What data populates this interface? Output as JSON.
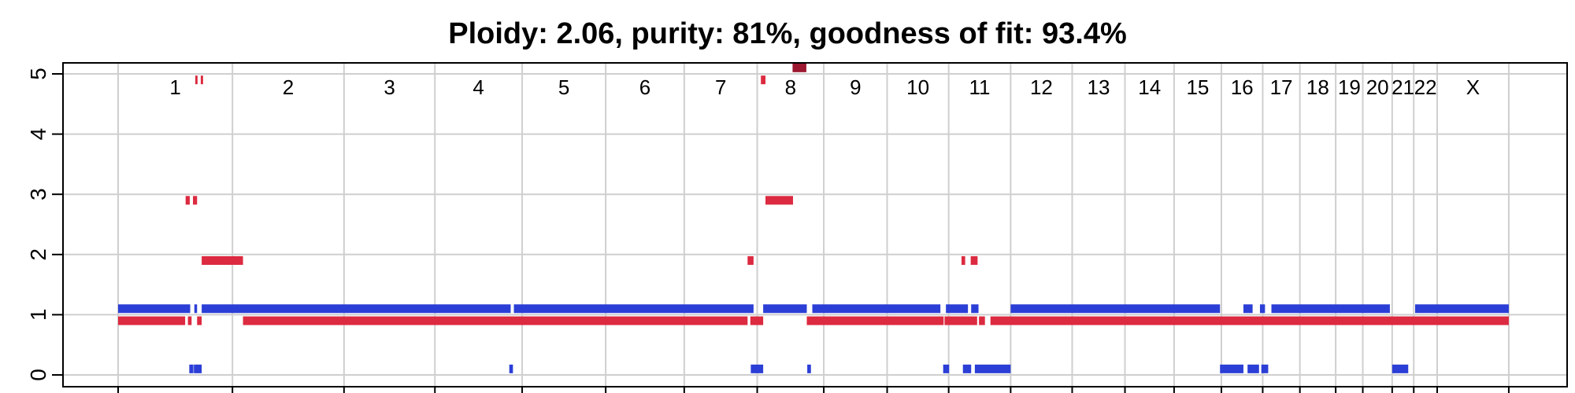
{
  "chart_data": {
    "type": "segment",
    "title": "Ploidy: 2.06, purity: 81%, goodness of fit: 93.4%",
    "ylim": [
      0,
      5
    ],
    "y_ticks": [
      "0",
      "1",
      "2",
      "3",
      "4",
      "5"
    ],
    "x_range_mb": [
      0,
      3036
    ],
    "grid": true,
    "chromosomes": [
      {
        "name": "1",
        "start": 0,
        "end": 249
      },
      {
        "name": "2",
        "start": 249,
        "end": 492
      },
      {
        "name": "3",
        "start": 492,
        "end": 690
      },
      {
        "name": "4",
        "start": 690,
        "end": 880
      },
      {
        "name": "5",
        "start": 880,
        "end": 1062
      },
      {
        "name": "6",
        "start": 1062,
        "end": 1233
      },
      {
        "name": "7",
        "start": 1233,
        "end": 1392
      },
      {
        "name": "8",
        "start": 1392,
        "end": 1537
      },
      {
        "name": "9",
        "start": 1537,
        "end": 1675
      },
      {
        "name": "10",
        "start": 1675,
        "end": 1809
      },
      {
        "name": "11",
        "start": 1809,
        "end": 1944
      },
      {
        "name": "12",
        "start": 1944,
        "end": 2078
      },
      {
        "name": "13",
        "start": 2078,
        "end": 2193
      },
      {
        "name": "14",
        "start": 2193,
        "end": 2300
      },
      {
        "name": "15",
        "start": 2300,
        "end": 2403
      },
      {
        "name": "16",
        "start": 2403,
        "end": 2493
      },
      {
        "name": "17",
        "start": 2493,
        "end": 2574
      },
      {
        "name": "18",
        "start": 2574,
        "end": 2652
      },
      {
        "name": "19",
        "start": 2652,
        "end": 2711
      },
      {
        "name": "20",
        "start": 2711,
        "end": 2775
      },
      {
        "name": "21",
        "start": 2775,
        "end": 2822
      },
      {
        "name": "22",
        "start": 2822,
        "end": 2873
      },
      {
        "name": "X",
        "start": 2873,
        "end": 3029
      }
    ],
    "series": [
      {
        "name": "",
        "color": "#dc2a40",
        "segments": [
          {
            "start": 0,
            "end": 146,
            "value": 0.9
          },
          {
            "start": 152,
            "end": 160,
            "value": 0.9
          },
          {
            "start": 172,
            "end": 182,
            "value": 0.9
          },
          {
            "start": 272,
            "end": 1371,
            "value": 0.9
          },
          {
            "start": 1377,
            "end": 1405,
            "value": 0.9
          },
          {
            "start": 1500,
            "end": 1798,
            "value": 0.9
          },
          {
            "start": 1800,
            "end": 1871,
            "value": 0.9
          },
          {
            "start": 1875,
            "end": 1888,
            "value": 0.9
          },
          {
            "start": 1900,
            "end": 3029,
            "value": 0.9
          },
          {
            "start": 182,
            "end": 272,
            "value": 1.9
          },
          {
            "start": 1371,
            "end": 1384,
            "value": 1.9
          },
          {
            "start": 1837,
            "end": 1845,
            "value": 1.9
          },
          {
            "start": 1857,
            "end": 1872,
            "value": 1.9
          },
          {
            "start": 147,
            "end": 156,
            "value": 2.9
          },
          {
            "start": 163,
            "end": 172,
            "value": 2.9
          },
          {
            "start": 1410,
            "end": 1470,
            "value": 2.9
          },
          {
            "start": 168,
            "end": 173,
            "value": 4.9
          },
          {
            "start": 180,
            "end": 185,
            "value": 4.9
          },
          {
            "start": 1400,
            "end": 1410,
            "value": 4.9
          }
        ]
      },
      {
        "name": "",
        "color": "#2b3ed6",
        "segments": [
          {
            "start": 0,
            "end": 157,
            "value": 1.1
          },
          {
            "start": 166,
            "end": 172,
            "value": 1.1
          },
          {
            "start": 182,
            "end": 855,
            "value": 1.1
          },
          {
            "start": 862,
            "end": 1384,
            "value": 1.1
          },
          {
            "start": 1405,
            "end": 1500,
            "value": 1.1
          },
          {
            "start": 1512,
            "end": 1791,
            "value": 1.1
          },
          {
            "start": 1803,
            "end": 1851,
            "value": 1.1
          },
          {
            "start": 1858,
            "end": 1874,
            "value": 1.1
          },
          {
            "start": 1944,
            "end": 2400,
            "value": 1.1
          },
          {
            "start": 2451,
            "end": 2471,
            "value": 1.1
          },
          {
            "start": 2487,
            "end": 2498,
            "value": 1.1
          },
          {
            "start": 2512,
            "end": 2770,
            "value": 1.1
          },
          {
            "start": 2825,
            "end": 3029,
            "value": 1.1
          },
          {
            "start": 155,
            "end": 164,
            "value": 0.1
          },
          {
            "start": 165,
            "end": 182,
            "value": 0.1
          },
          {
            "start": 852,
            "end": 860,
            "value": 0.1
          },
          {
            "start": 1378,
            "end": 1405,
            "value": 0.1
          },
          {
            "start": 1501,
            "end": 1509,
            "value": 0.1
          },
          {
            "start": 1797,
            "end": 1810,
            "value": 0.1
          },
          {
            "start": 1840,
            "end": 1858,
            "value": 0.1
          },
          {
            "start": 1866,
            "end": 1944,
            "value": 0.1
          },
          {
            "start": 2400,
            "end": 2451,
            "value": 0.1
          },
          {
            "start": 2460,
            "end": 2485,
            "value": 0.1
          },
          {
            "start": 2490,
            "end": 2505,
            "value": 0.1
          },
          {
            "start": 2775,
            "end": 2810,
            "value": 0.1
          }
        ]
      },
      {
        "name": "",
        "color": "#9b1830",
        "segments": [
          {
            "start": 1469,
            "end": 1499,
            "value": 5.1
          }
        ]
      }
    ]
  }
}
